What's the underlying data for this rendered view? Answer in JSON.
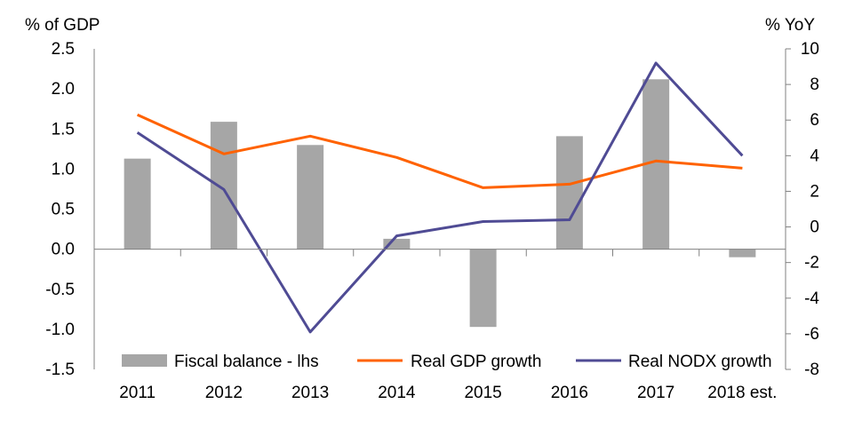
{
  "chart_data": {
    "type": "bar",
    "categories": [
      "2011",
      "2012",
      "2013",
      "2014",
      "2015",
      "2016",
      "2017",
      "2018 est."
    ],
    "left_axis_label": "% of GDP",
    "right_axis_label": "% YoY",
    "ylim_left": [
      -1.5,
      2.5
    ],
    "yticks_left": [
      "2.5",
      "2.0",
      "1.5",
      "1.0",
      "0.5",
      "0.0",
      "-0.5",
      "-1.0",
      "-1.5"
    ],
    "yticks_left_values": [
      2.5,
      2.0,
      1.5,
      1.0,
      0.5,
      0.0,
      -0.5,
      -1.0,
      -1.5
    ],
    "ylim_right": [
      -8,
      10
    ],
    "yticks_right": [
      "10",
      "8",
      "6",
      "4",
      "2",
      "0",
      "-2",
      "-4",
      "-6",
      "-8"
    ],
    "yticks_right_values": [
      10,
      8,
      6,
      4,
      2,
      0,
      -2,
      -4,
      -6,
      -8
    ],
    "grid": false,
    "legend_position": "bottom",
    "series": [
      {
        "name": "Fiscal balance - lhs",
        "type": "bar",
        "axis": "left",
        "color": "#a6a6a6",
        "values": [
          1.13,
          1.59,
          1.3,
          0.13,
          -0.97,
          1.41,
          2.12,
          -0.1
        ]
      },
      {
        "name": "Real GDP growth",
        "type": "line",
        "axis": "right",
        "color": "#ff6200",
        "values": [
          6.3,
          4.1,
          5.1,
          3.9,
          2.2,
          2.4,
          3.7,
          3.3
        ]
      },
      {
        "name": "Real NODX growth",
        "type": "line",
        "axis": "right",
        "color": "#4f4b94",
        "values": [
          5.3,
          2.1,
          -5.9,
          -0.5,
          0.3,
          0.4,
          9.2,
          4.0
        ]
      }
    ]
  }
}
